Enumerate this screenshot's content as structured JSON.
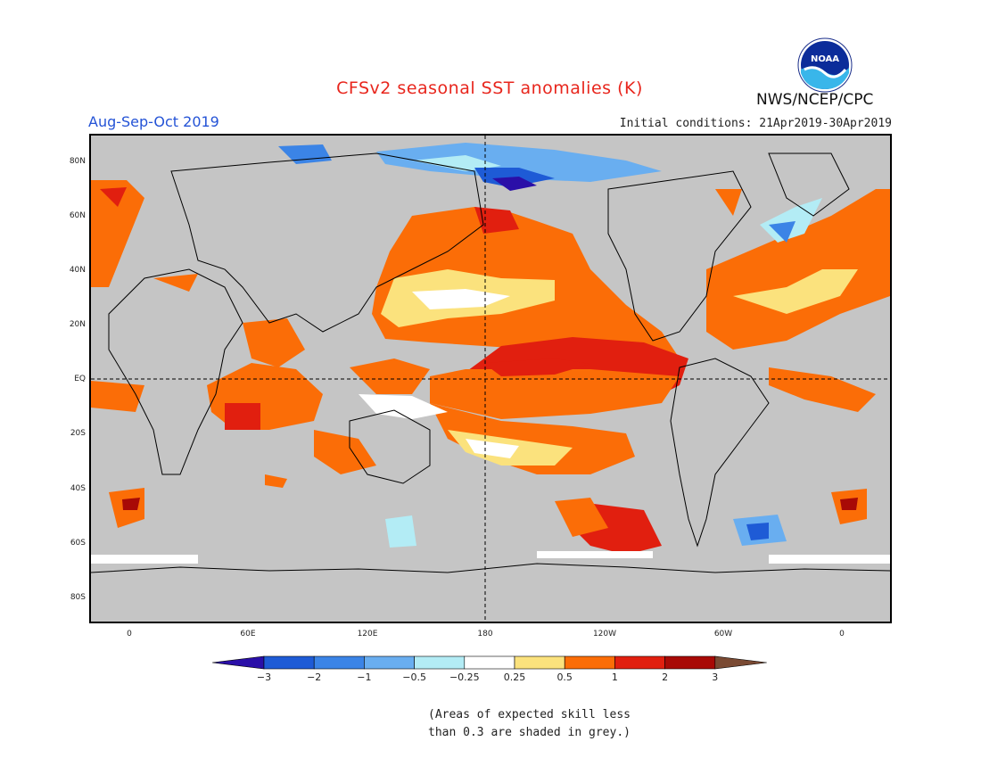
{
  "title": "CFSv2 seasonal SST anomalies (K)",
  "season": "Aug-Sep-Oct 2019",
  "initial_conditions": "Initial conditions: 21Apr2019-30Apr2019",
  "agency": "NWS/NCEP/CPC",
  "logo_text": "NOAA",
  "lat_labels": [
    "80N",
    "60N",
    "40N",
    "20N",
    "EQ",
    "20S",
    "40S",
    "60S",
    "80S"
  ],
  "lon_labels": [
    "0",
    "60E",
    "120E",
    "180",
    "120W",
    "60W",
    "0"
  ],
  "colorbar": {
    "labels": [
      "-3",
      "-2",
      "-1",
      "-0.5",
      "-0.25",
      "0.25",
      "0.5",
      "1",
      "2",
      "3"
    ],
    "colors": [
      "#2a0fa8",
      "#1e5bd6",
      "#3b84e6",
      "#69aef0",
      "#b3ecf5",
      "#ffffff",
      "#fbe27d",
      "#fb6d07",
      "#e11f0f",
      "#a80a06",
      "#7a4a33"
    ]
  },
  "colors": {
    "land": "#c5c5c5",
    "title": "#e8261d",
    "season": "#2453d6"
  },
  "note": [
    "(Areas of expected skill less",
    "than 0.3 are shaded in grey.)"
  ]
}
